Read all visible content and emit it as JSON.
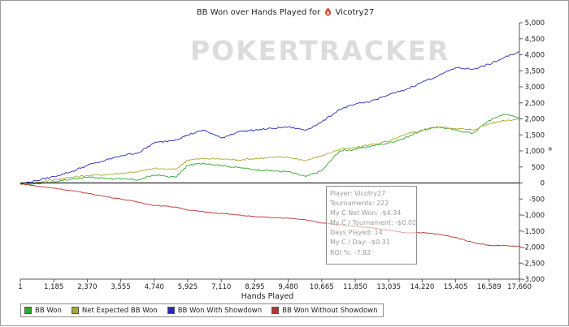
{
  "chart_data": {
    "type": "line",
    "title_prefix": "BB Won over Hands Played for",
    "player_name": "Vicotry27",
    "watermark": "POKERTRACKER",
    "xlabel": "Hands Played",
    "ylabel": "",
    "xlim": [
      1,
      17660
    ],
    "ylim": [
      -3000,
      5000
    ],
    "x_ticks": [
      1,
      1185,
      2370,
      3555,
      4740,
      5925,
      7110,
      8295,
      9480,
      10665,
      11850,
      13035,
      14220,
      15405,
      16589,
      17660
    ],
    "x_tick_labels": [
      "1",
      "1,185",
      "2,370",
      "3,555",
      "4,740",
      "5,925",
      "7,110",
      "8,295",
      "9,480",
      "10,665",
      "11,850",
      "13,035",
      "14,220",
      "15,405",
      "16,589",
      "17,660"
    ],
    "y_ticks": [
      5000,
      4500,
      4000,
      3500,
      3000,
      2500,
      2000,
      1500,
      1000,
      500,
      0,
      -500,
      -1000,
      -1500,
      -2000,
      -2500,
      -3000
    ],
    "y_tick_labels": [
      "5,000",
      "4,500",
      "4,000",
      "3,500",
      "3,000",
      "2,500",
      "2,000",
      "1,500",
      "1,000",
      "500",
      "0",
      "-500",
      "-1,000",
      "-1,500",
      "-2,000",
      "-2,500",
      "-3,000"
    ],
    "series": [
      {
        "name": "BB Won",
        "color": "#2ea82e",
        "x": [
          1,
          600,
          1185,
          1800,
          2370,
          3000,
          3555,
          4200,
          4740,
          5500,
          5925,
          6500,
          7110,
          7700,
          8295,
          8900,
          9480,
          10100,
          10665,
          11300,
          11850,
          12400,
          13035,
          13600,
          14220,
          14800,
          15405,
          16000,
          16589,
          17100,
          17660
        ],
        "y": [
          -50,
          -20,
          40,
          120,
          180,
          150,
          120,
          100,
          250,
          180,
          550,
          620,
          550,
          480,
          420,
          380,
          350,
          200,
          380,
          1000,
          1050,
          1150,
          1250,
          1400,
          1650,
          1750,
          1650,
          1550,
          1950,
          2150,
          2050
        ]
      },
      {
        "name": "Net Expected BB Won",
        "color": "#a8a832",
        "x": [
          1,
          600,
          1185,
          1800,
          2370,
          3000,
          3555,
          4200,
          4740,
          5500,
          5925,
          6500,
          7110,
          7700,
          8295,
          8900,
          9480,
          10100,
          10665,
          11300,
          11850,
          12400,
          13035,
          13600,
          14220,
          14800,
          15405,
          16000,
          16589,
          17100,
          17660
        ],
        "y": [
          -40,
          20,
          100,
          180,
          230,
          260,
          300,
          360,
          450,
          420,
          720,
          760,
          750,
          720,
          760,
          800,
          800,
          700,
          850,
          1050,
          1100,
          1200,
          1300,
          1500,
          1650,
          1750,
          1700,
          1650,
          1850,
          1950,
          2000
        ]
      },
      {
        "name": "BB Won With Showdown",
        "color": "#2a2ab8",
        "x": [
          1,
          600,
          1185,
          1800,
          2370,
          3000,
          3555,
          4200,
          4740,
          5500,
          5925,
          6500,
          7110,
          7700,
          8295,
          8900,
          9480,
          10100,
          10665,
          11300,
          11850,
          12400,
          13035,
          13600,
          14220,
          14800,
          15405,
          16000,
          16589,
          17100,
          17660
        ],
        "y": [
          -30,
          80,
          200,
          350,
          550,
          700,
          850,
          950,
          1250,
          1350,
          1500,
          1650,
          1400,
          1600,
          1650,
          1700,
          1750,
          1650,
          1900,
          2300,
          2450,
          2550,
          2750,
          2900,
          3150,
          3350,
          3600,
          3550,
          3700,
          3900,
          4100
        ]
      },
      {
        "name": "BB Won Without Showdown",
        "color": "#b83232",
        "x": [
          1,
          600,
          1185,
          1800,
          2370,
          3000,
          3555,
          4200,
          4740,
          5500,
          5925,
          6500,
          7110,
          7700,
          8295,
          8900,
          9480,
          10100,
          10665,
          11300,
          11850,
          12400,
          13035,
          13600,
          14220,
          14800,
          15405,
          16000,
          16589,
          17100,
          17660
        ],
        "y": [
          -20,
          -100,
          -160,
          -240,
          -320,
          -420,
          -500,
          -600,
          -700,
          -750,
          -840,
          -900,
          -950,
          -1000,
          -1050,
          -1080,
          -1100,
          -1150,
          -1250,
          -1300,
          -1350,
          -1400,
          -1480,
          -1550,
          -1550,
          -1600,
          -1700,
          -1850,
          -1950,
          -1950,
          -1980
        ]
      }
    ],
    "legend": {
      "position": "bottom-left",
      "items": [
        {
          "label": "BB Won",
          "color": "#2ea82e"
        },
        {
          "label": "Net Expected BB Won",
          "color": "#a8a832"
        },
        {
          "label": "BB Won With Showdown",
          "color": "#2a2ab8"
        },
        {
          "label": "BB Won Without Showdown",
          "color": "#b83232"
        }
      ]
    },
    "annotation": {
      "rows": [
        {
          "label": "Player:",
          "value": "Vicotry27"
        },
        {
          "label": "Tournaments:",
          "value": "222"
        },
        {
          "label": "My C Net Won:",
          "value": "-$4.34"
        },
        {
          "label": "My C / Tournament:",
          "value": "-$0.02"
        },
        {
          "label": "Days Played:",
          "value": "14"
        },
        {
          "label": "My C / Day:",
          "value": "-$0.31"
        },
        {
          "label": "ROI %:",
          "value": "-7.82"
        }
      ]
    }
  },
  "icons": {
    "player": "flame-icon",
    "side": "pin-icon"
  },
  "colors": {
    "zero_line": "#000000",
    "axis": "#555555",
    "tick": "#555555",
    "player_icon": "#e0452a"
  }
}
